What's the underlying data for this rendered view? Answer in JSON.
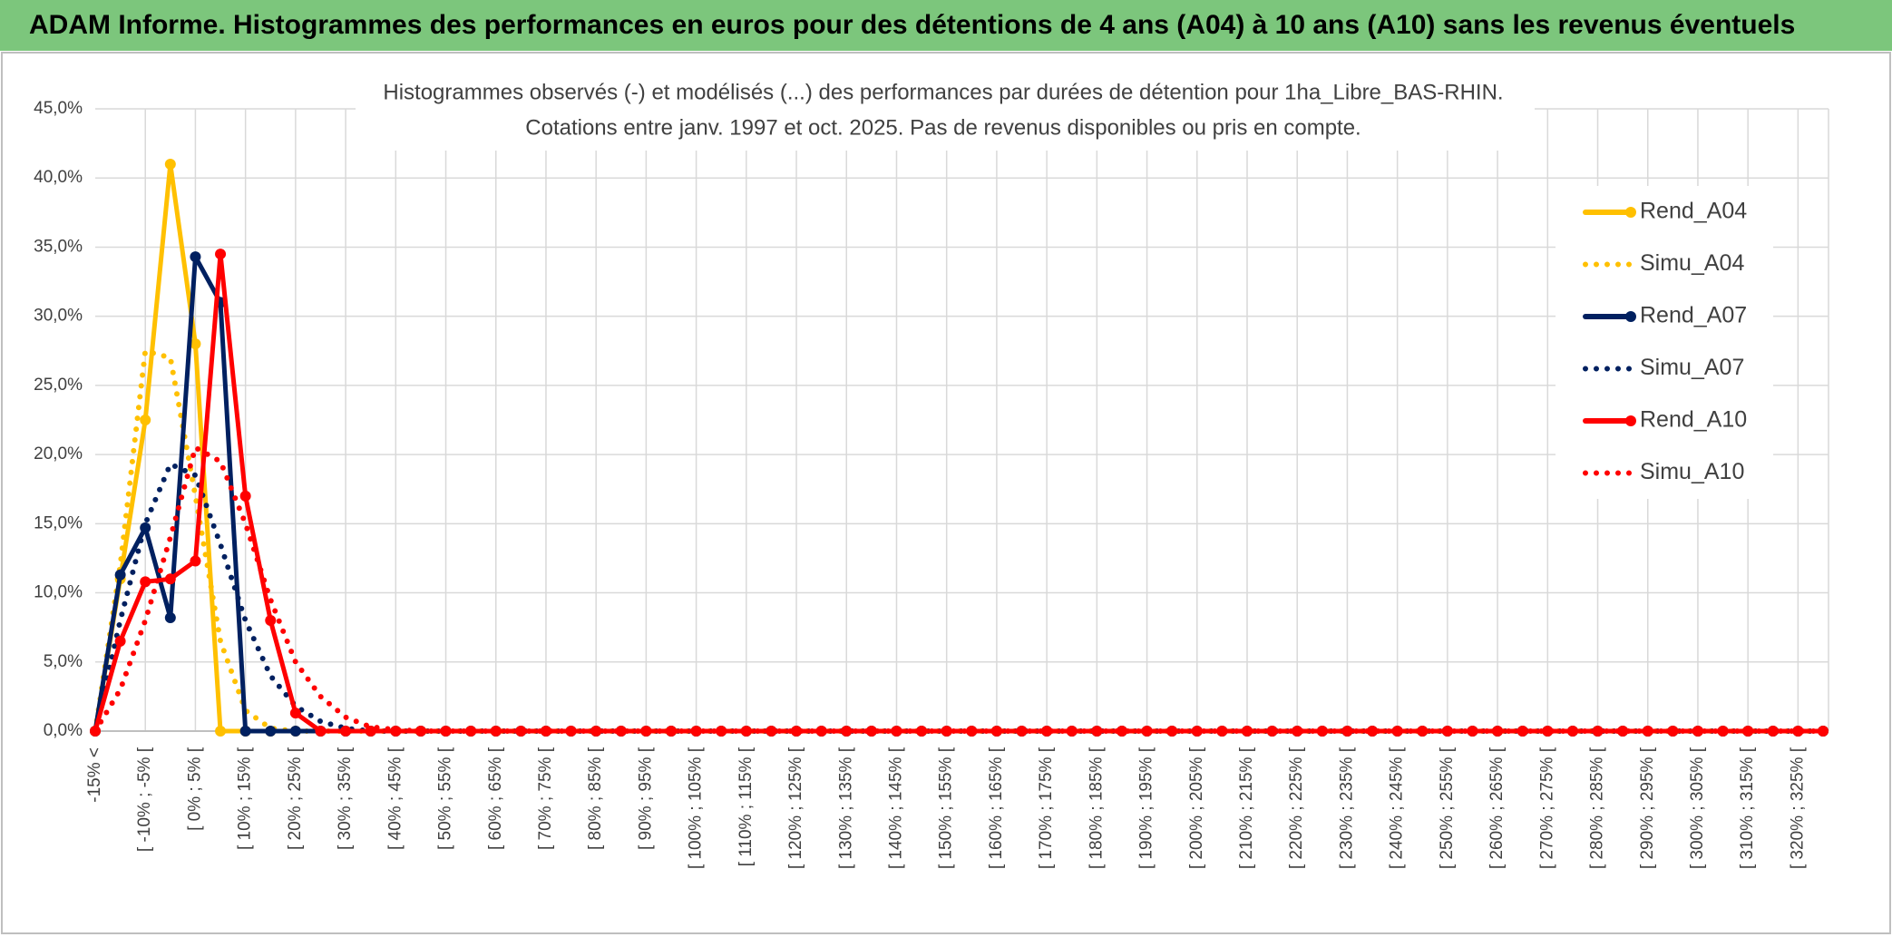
{
  "chart_data": {
    "type": "line",
    "title": "ADAM Informe. Histogrammes des performances en euros pour des détentions de 4 ans (A04) à 10 ans (A10) sans les revenus éventuels",
    "subtitle": [
      "Histogrammes observés (-) et modélisés (...) des performances par durées de détention pour 1ha_Libre_BAS-RHIN.",
      "Cotations entre janv. 1997 et oct. 2025. Pas de revenus disponibles ou pris en compte."
    ],
    "categories": [
      "-15% <",
      null,
      "[ -10% ; -5% [",
      null,
      "[ 0% ; 5% [",
      null,
      "[ 10% ; 15% [",
      null,
      "[ 20% ; 25% [",
      null,
      "[ 30% ; 35% [",
      null,
      "[ 40% ; 45% [",
      null,
      "[ 50% ; 55% [",
      null,
      "[ 60% ; 65% [",
      null,
      "[ 70% ; 75% [",
      null,
      "[ 80% ; 85% [",
      null,
      "[ 90% ; 95% [",
      null,
      "[ 100% ; 105% [",
      null,
      "[ 110% ; 115% [",
      null,
      "[ 120% ; 125% [",
      null,
      "[ 130% ; 135% [",
      null,
      "[ 140% ; 145% [",
      null,
      "[ 150% ; 155% [",
      null,
      "[ 160% ; 165% [",
      null,
      "[ 170% ; 175% [",
      null,
      "[ 180% ; 185% [",
      null,
      "[ 190% ; 195% [",
      null,
      "[ 200% ; 205% [",
      null,
      "[ 210% ; 215% [",
      null,
      "[ 220% ; 225% [",
      null,
      "[ 230% ; 235% [",
      null,
      "[ 240% ; 245% [",
      null,
      "[ 250% ; 255% [",
      null,
      "[ 260% ; 265% [",
      null,
      "[ 270% ; 275% [",
      null,
      "[ 280% ; 285% [",
      null,
      "[ 290% ; 295% [",
      null,
      "[ 300% ; 305% [",
      null,
      "[ 310% ; 315% [",
      null,
      "[ 320% ; 325% [",
      null
    ],
    "series": [
      {
        "name": "Rend_A04",
        "color": "#ffc000",
        "style": "solid",
        "marker": true,
        "values": [
          0,
          11,
          22.5,
          41,
          28,
          0,
          0,
          0,
          0,
          0,
          0,
          0,
          0,
          0,
          0,
          0,
          0,
          0,
          0,
          0,
          0,
          0,
          0,
          0,
          0,
          0,
          0,
          0,
          0,
          0,
          0,
          0,
          0,
          0,
          0,
          0,
          0,
          0,
          0,
          0,
          0,
          0,
          0,
          0,
          0,
          0,
          0,
          0,
          0,
          0,
          0,
          0,
          0,
          0,
          0,
          0,
          0,
          0,
          0,
          0,
          0,
          0,
          0,
          0,
          0,
          0,
          0,
          0,
          0,
          0
        ]
      },
      {
        "name": "Simu_A04",
        "color": "#ffc000",
        "style": "dotted",
        "marker": false,
        "values": [
          0,
          12,
          27.5,
          27,
          17,
          6.5,
          1.5,
          0.2,
          0,
          0,
          0,
          0,
          0,
          0,
          0,
          0,
          0,
          0,
          0,
          0,
          0,
          0,
          0,
          0,
          0,
          0,
          0,
          0,
          0,
          0,
          0,
          0,
          0,
          0,
          0,
          0,
          0,
          0,
          0,
          0,
          0,
          0,
          0,
          0,
          0,
          0,
          0,
          0,
          0,
          0,
          0,
          0,
          0,
          0,
          0,
          0,
          0,
          0,
          0,
          0,
          0,
          0,
          0,
          0,
          0,
          0,
          0,
          0,
          0,
          0
        ]
      },
      {
        "name": "Rend_A07",
        "color": "#002060",
        "style": "solid",
        "marker": true,
        "values": [
          0,
          11.3,
          14.7,
          8.2,
          34.3,
          31,
          0,
          0,
          0,
          0,
          0,
          0,
          0,
          0,
          0,
          0,
          0,
          0,
          0,
          0,
          0,
          0,
          0,
          0,
          0,
          0,
          0,
          0,
          0,
          0,
          0,
          0,
          0,
          0,
          0,
          0,
          0,
          0,
          0,
          0,
          0,
          0,
          0,
          0,
          0,
          0,
          0,
          0,
          0,
          0,
          0,
          0,
          0,
          0,
          0,
          0,
          0,
          0,
          0,
          0,
          0,
          0,
          0,
          0,
          0,
          0,
          0,
          0,
          0,
          0
        ]
      },
      {
        "name": "Simu_A07",
        "color": "#002060",
        "style": "dotted",
        "marker": false,
        "values": [
          0,
          8,
          15,
          19.3,
          18.5,
          13.5,
          8,
          4,
          1.8,
          0.7,
          0.2,
          0,
          0,
          0,
          0,
          0,
          0,
          0,
          0,
          0,
          0,
          0,
          0,
          0,
          0,
          0,
          0,
          0,
          0,
          0,
          0,
          0,
          0,
          0,
          0,
          0,
          0,
          0,
          0,
          0,
          0,
          0,
          0,
          0,
          0,
          0,
          0,
          0,
          0,
          0,
          0,
          0,
          0,
          0,
          0,
          0,
          0,
          0,
          0,
          0,
          0,
          0,
          0,
          0,
          0,
          0,
          0,
          0,
          0,
          0
        ]
      },
      {
        "name": "Rend_A10",
        "color": "#ff0000",
        "style": "solid",
        "marker": true,
        "values": [
          0,
          6.5,
          10.8,
          11,
          12.3,
          34.5,
          17,
          8,
          1.3,
          0,
          0,
          0,
          0,
          0,
          0,
          0,
          0,
          0,
          0,
          0,
          0,
          0,
          0,
          0,
          0,
          0,
          0,
          0,
          0,
          0,
          0,
          0,
          0,
          0,
          0,
          0,
          0,
          0,
          0,
          0,
          0,
          0,
          0,
          0,
          0,
          0,
          0,
          0,
          0,
          0,
          0,
          0,
          0,
          0,
          0,
          0,
          0,
          0,
          0,
          0,
          0,
          0,
          0,
          0,
          0,
          0,
          0,
          0,
          0,
          0
        ]
      },
      {
        "name": "Simu_A10",
        "color": "#ff0000",
        "style": "dotted",
        "marker": false,
        "values": [
          0,
          3,
          8,
          14,
          20.5,
          19.5,
          15,
          9.5,
          5,
          2.5,
          1,
          0.3,
          0.1,
          0,
          0,
          0,
          0,
          0,
          0,
          0,
          0,
          0,
          0,
          0,
          0,
          0,
          0,
          0,
          0,
          0,
          0,
          0,
          0,
          0,
          0,
          0,
          0,
          0,
          0,
          0,
          0,
          0,
          0,
          0,
          0,
          0,
          0,
          0,
          0,
          0,
          0,
          0,
          0,
          0,
          0,
          0,
          0,
          0,
          0,
          0,
          0,
          0,
          0,
          0,
          0,
          0,
          0,
          0,
          0,
          0
        ]
      }
    ],
    "ylim": [
      0,
      45
    ],
    "yticks": [
      {
        "value": 0,
        "label": "0,0%"
      },
      {
        "value": 5,
        "label": "5,0%"
      },
      {
        "value": 10,
        "label": "10,0%"
      },
      {
        "value": 15,
        "label": "15,0%"
      },
      {
        "value": 20,
        "label": "20,0%"
      },
      {
        "value": 25,
        "label": "25,0%"
      },
      {
        "value": 30,
        "label": "30,0%"
      },
      {
        "value": 35,
        "label": "35,0%"
      },
      {
        "value": 40,
        "label": "40,0%"
      },
      {
        "value": 45,
        "label": "45,0%"
      }
    ],
    "grid": true,
    "legend": "right"
  }
}
